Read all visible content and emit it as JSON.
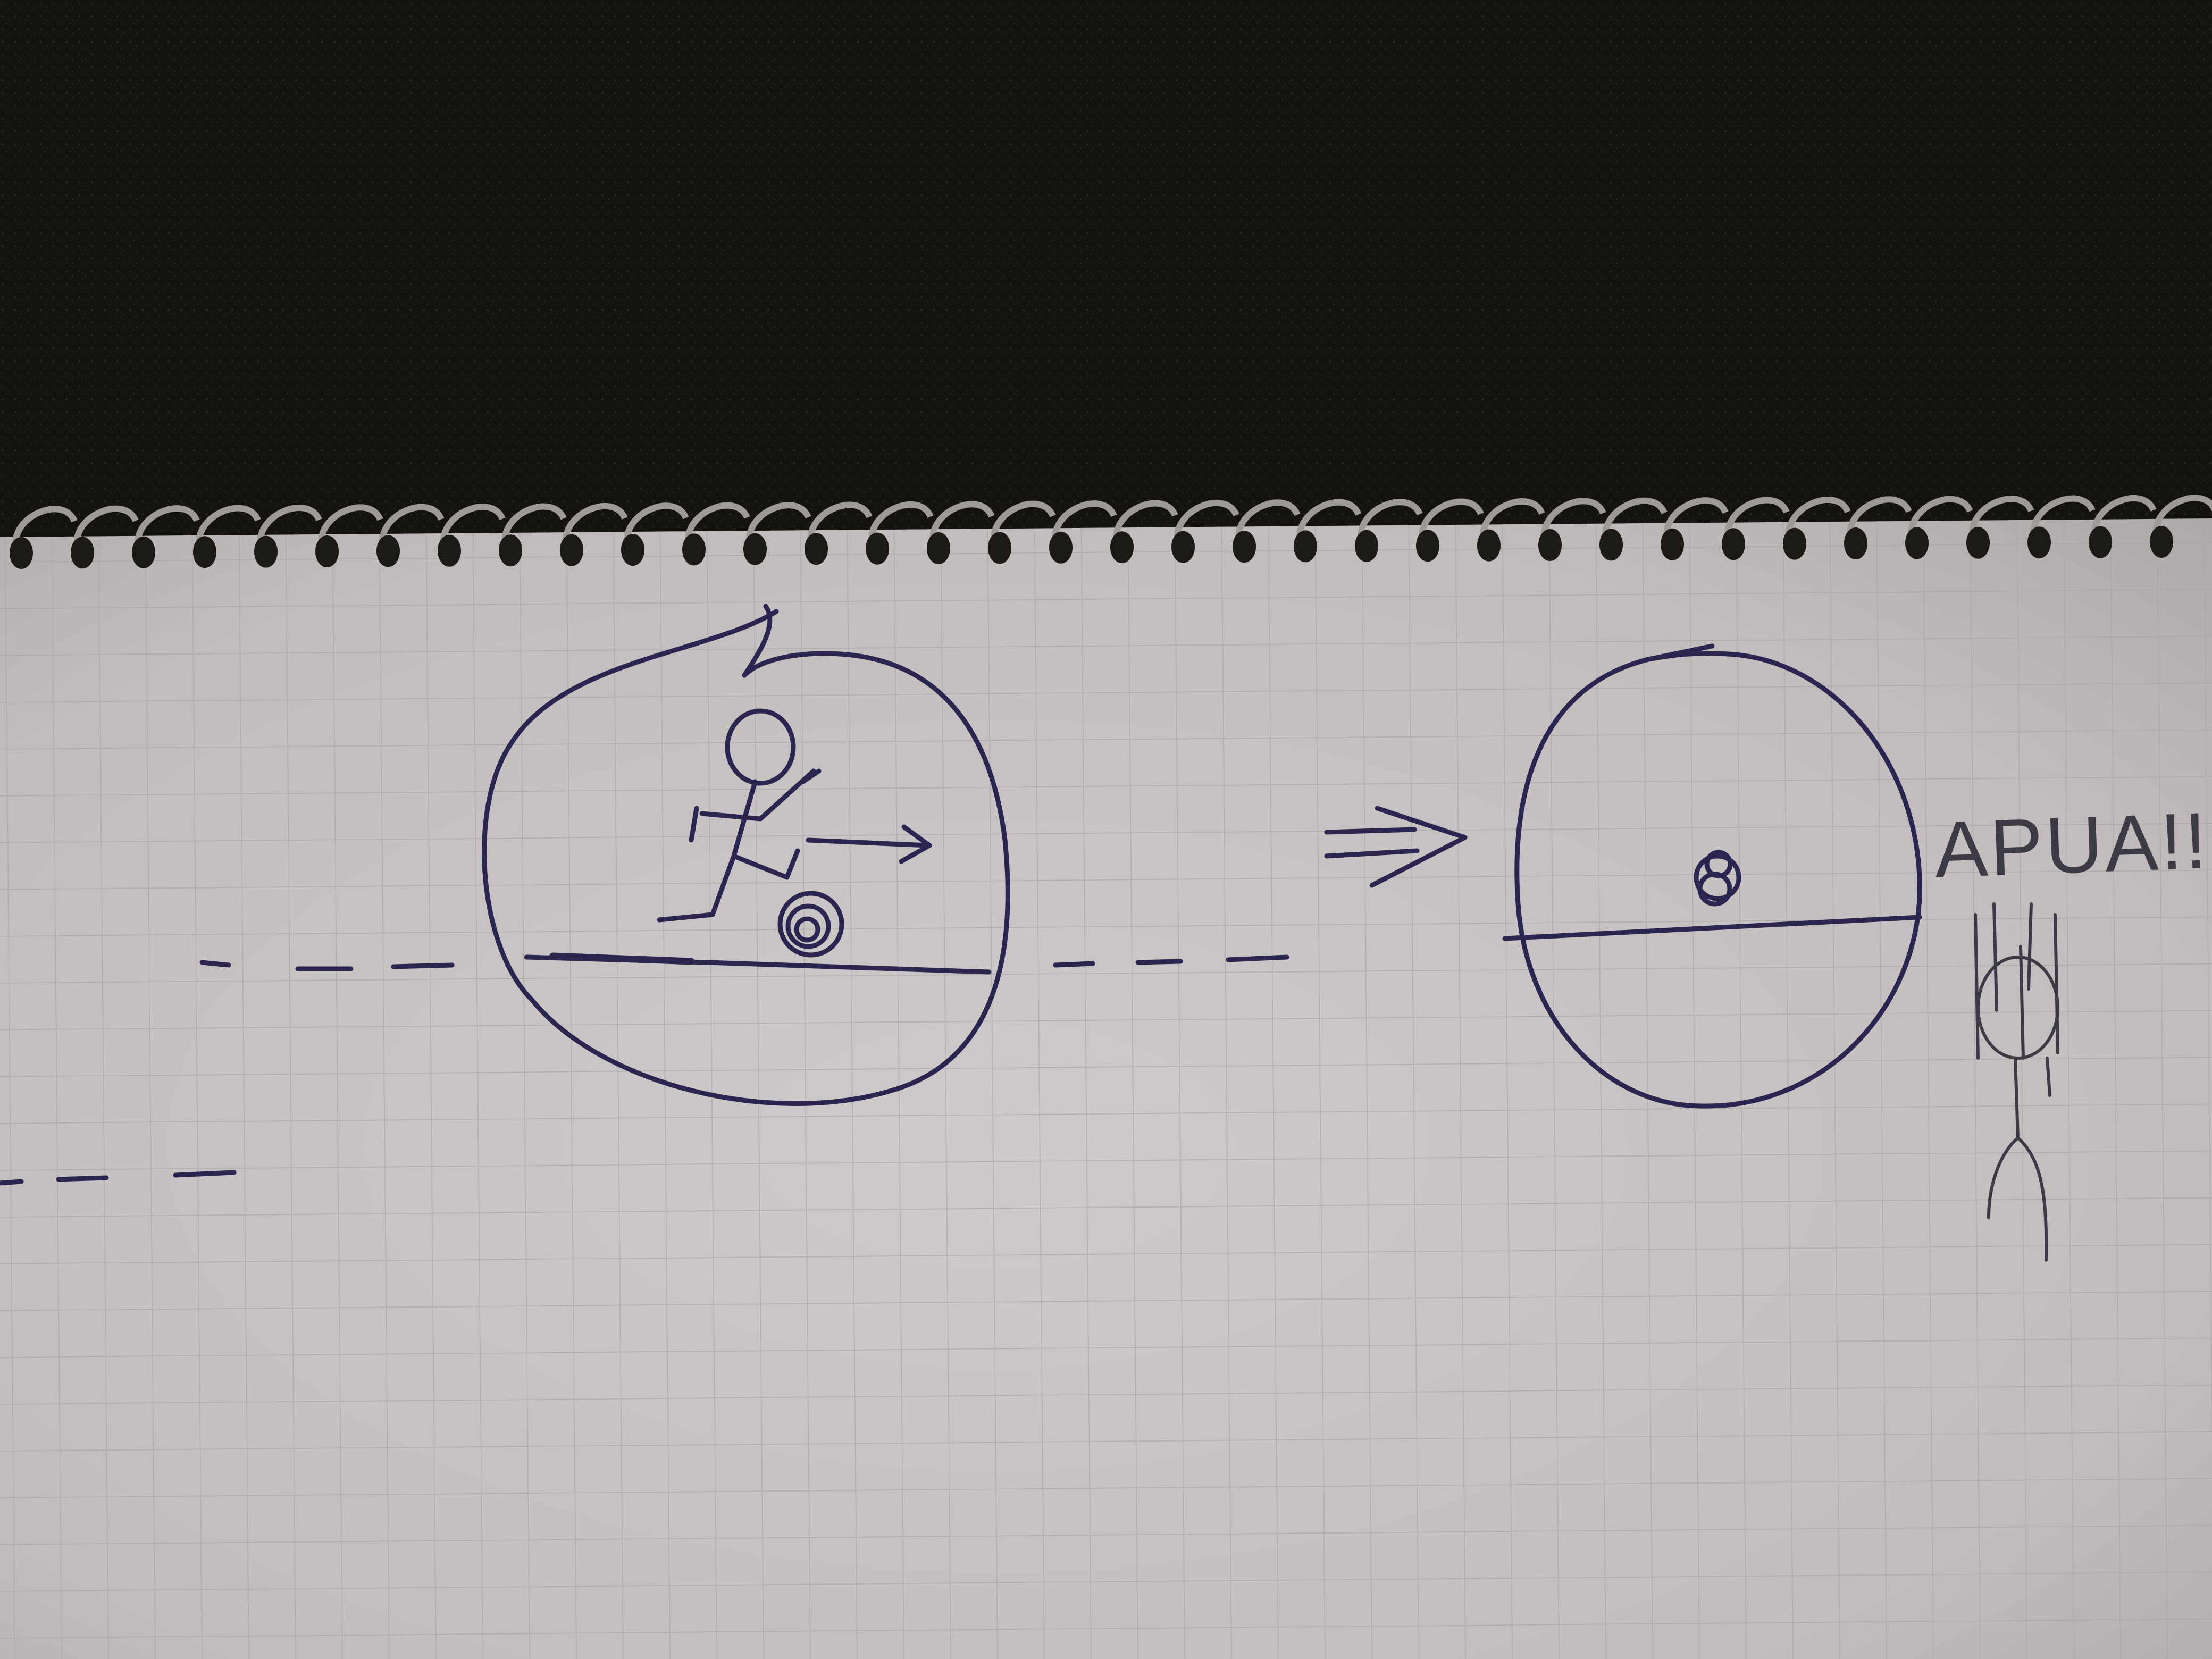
{
  "scene": {
    "description_kind": "photo of spiral notebook page with pen sketch",
    "colors": {
      "background": "#151310",
      "paper": "#c9c4c5",
      "grid": "#a9a3a6",
      "ink": "#2a2650",
      "pencil": "#3c3a45",
      "spiral": "#9d9a98"
    },
    "icons": [
      "spiral-binding-icon",
      "stick-figure-kicking-icon",
      "ball-icon",
      "arrow-icon",
      "stick-figure-hanging-icon"
    ]
  },
  "annotations": {
    "exclamation": "APUA!!!"
  }
}
